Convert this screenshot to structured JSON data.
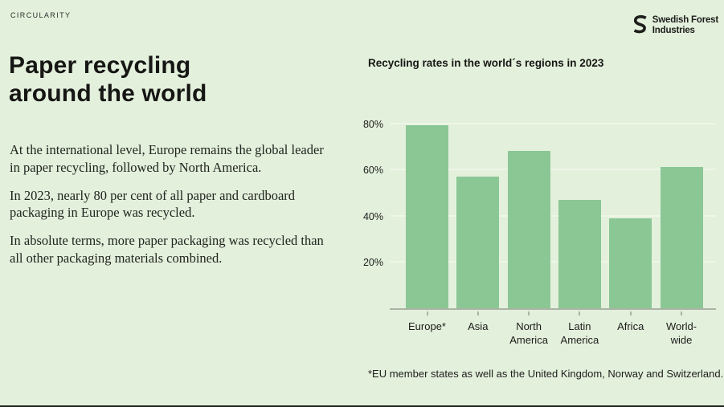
{
  "page": {
    "eyebrow": "CIRCULARITY",
    "title_line1": "Paper recycling",
    "title_line2": "around the world",
    "paragraphs": [
      "At the international level, Europe remains the global leader in paper recycling, followed by North America.",
      "In 2023, nearly 80 per cent of all paper and cardboard packaging in Europe was recycled.",
      "In absolute terms, more paper packaging was recycled than all other packaging materials combined."
    ]
  },
  "logo": {
    "icon": "s-swirl-logo-icon",
    "name_line1": "Swedish Forest",
    "name_line2": "Industries"
  },
  "chart_data": {
    "type": "bar",
    "title": "Recycling rates in the world´s regions in 2023",
    "categories": [
      "Europe*",
      "Asia",
      "North America",
      "Latin America",
      "Africa",
      "World-wide"
    ],
    "category_lines": [
      [
        "Europe*"
      ],
      [
        "Asia"
      ],
      [
        "North",
        "America"
      ],
      [
        "Latin",
        "America"
      ],
      [
        "Africa"
      ],
      [
        "World-",
        "wide"
      ]
    ],
    "values": [
      79,
      57,
      68,
      47,
      39,
      61
    ],
    "unit": "%",
    "yticks": [
      20,
      40,
      60,
      80
    ],
    "ytick_labels": [
      "20%",
      "40%",
      "60%",
      "80%"
    ],
    "ylim": [
      0,
      84
    ],
    "grid": true,
    "legend": "none",
    "bar_color": "#8bc795",
    "footnote": "*EU member states as well as the United Kingdom, Norway and Switzerland."
  },
  "colors": {
    "background": "#e3f0dc",
    "bar": "#8bc795",
    "text_dark": "#1d1d1b",
    "axis": "#abb4a6",
    "gridline": "#eef6e8"
  }
}
